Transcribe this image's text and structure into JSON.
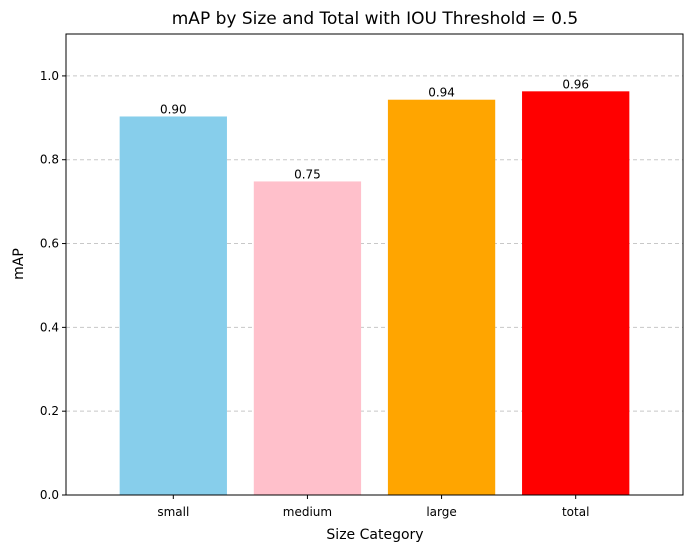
{
  "chart_data": {
    "type": "bar",
    "title": "mAP by Size and Total with IOU Threshold = 0.5",
    "xlabel": "Size Category",
    "ylabel": "mAP",
    "categories": [
      "small",
      "medium",
      "large",
      "total"
    ],
    "values": [
      0.9032,
      0.7482,
      0.9432,
      0.9632
    ],
    "value_labels": [
      "0.90",
      "0.75",
      "0.94",
      "0.96"
    ],
    "colors": [
      "#87ceeb",
      "#ffc0cb",
      "#ffa500",
      "#ff0000"
    ],
    "ylim": [
      0,
      1.1
    ],
    "yticks": [
      0.0,
      0.2,
      0.4,
      0.6,
      0.8,
      1.0
    ],
    "ytick_labels": [
      "0.0",
      "0.2",
      "0.4",
      "0.6",
      "0.8",
      "1.0"
    ],
    "grid": {
      "axis": "y",
      "style": "dashed",
      "color": "#c8c8c8"
    },
    "legend": "none"
  }
}
